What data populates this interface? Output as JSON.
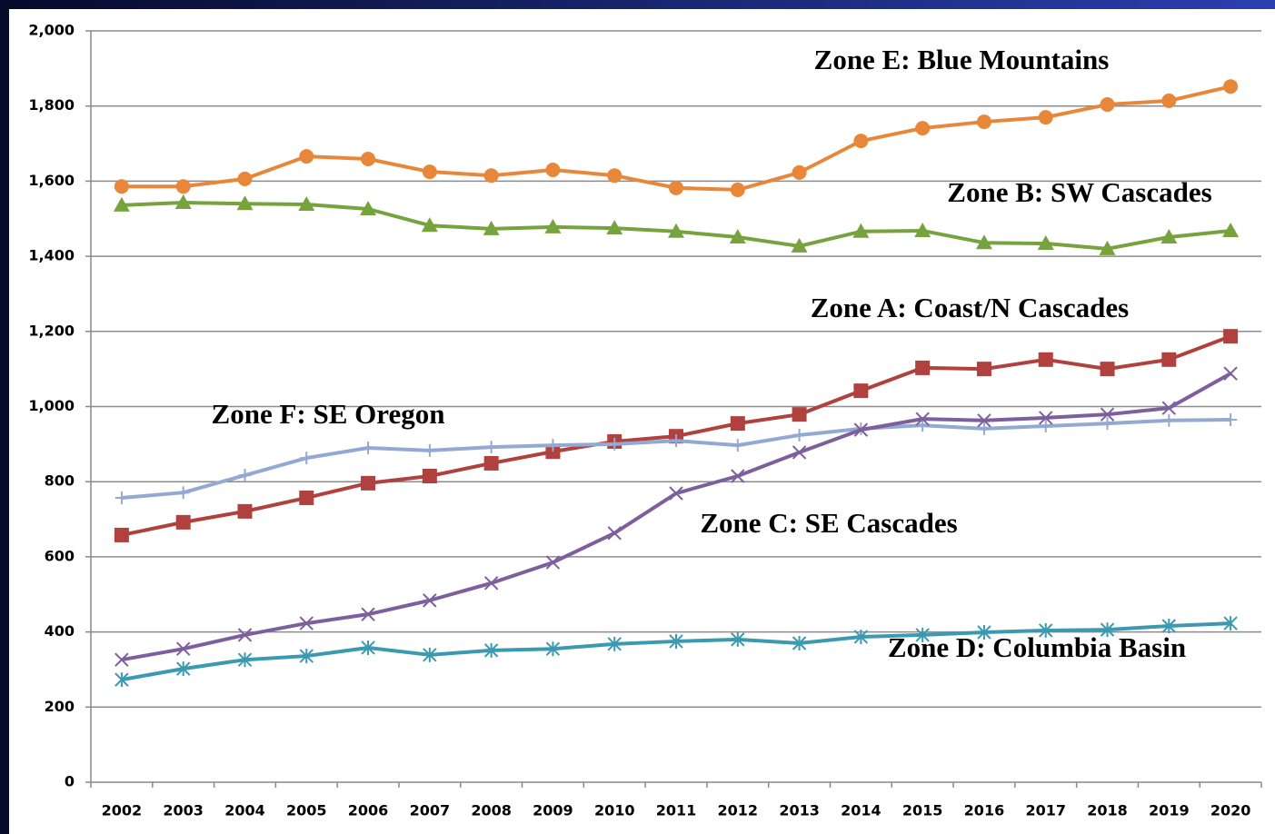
{
  "chart_data": {
    "type": "line",
    "categories": [
      "2002",
      "2003",
      "2004",
      "2005",
      "2006",
      "2007",
      "2008",
      "2009",
      "2010",
      "2011",
      "2012",
      "2013",
      "2014",
      "2015",
      "2016",
      "2017",
      "2018",
      "2019",
      "2020"
    ],
    "series": [
      {
        "name": "Zone E: Blue Mountains",
        "color": "#e8873a",
        "marker": "circle",
        "values": [
          1586,
          1586,
          1606,
          1666,
          1659,
          1625,
          1615,
          1630,
          1615,
          1582,
          1577,
          1623,
          1707,
          1741,
          1758,
          1770,
          1804,
          1814,
          1852
        ]
      },
      {
        "name": "Zone B: SW Cascades",
        "color": "#77a33e",
        "marker": "triangle",
        "values": [
          1536,
          1543,
          1540,
          1538,
          1526,
          1482,
          1473,
          1478,
          1475,
          1466,
          1451,
          1427,
          1466,
          1468,
          1436,
          1434,
          1420,
          1451,
          1468
        ]
      },
      {
        "name": "Zone A: Coast/N Cascades",
        "color": "#b0413e",
        "marker": "square",
        "values": [
          658,
          692,
          721,
          757,
          796,
          815,
          849,
          880,
          907,
          921,
          955,
          979,
          1042,
          1103,
          1100,
          1125,
          1100,
          1125,
          1187
        ]
      },
      {
        "name": "Zone F: SE Oregon",
        "color": "#93a9d1",
        "marker": "plus",
        "values": [
          757,
          771,
          817,
          863,
          890,
          883,
          892,
          897,
          900,
          909,
          897,
          924,
          941,
          950,
          941,
          948,
          955,
          963,
          965
        ]
      },
      {
        "name": "Zone C: SE Cascades",
        "color": "#7e5f9e",
        "marker": "cross",
        "values": [
          326,
          355,
          392,
          423,
          447,
          484,
          530,
          585,
          663,
          769,
          815,
          878,
          938,
          967,
          963,
          970,
          979,
          996,
          1088
        ]
      },
      {
        "name": "Zone D: Columbia Basin",
        "color": "#3b9ab0",
        "marker": "star",
        "values": [
          273,
          302,
          326,
          336,
          358,
          339,
          351,
          355,
          368,
          375,
          380,
          370,
          387,
          392,
          399,
          404,
          406,
          416,
          423
        ]
      }
    ],
    "ylim": [
      0,
      2000
    ],
    "yticks": [
      0,
      200,
      400,
      600,
      800,
      {
        "value": 1000,
        "label": "1,000"
      },
      {
        "value": 1200,
        "label": "1,200"
      },
      {
        "value": 1400,
        "label": "1,400"
      },
      {
        "value": 1600,
        "label": "1,600"
      },
      {
        "value": 1800,
        "label": "1,800"
      },
      {
        "value": 2000,
        "label": "2,000"
      }
    ],
    "grid": true
  }
}
